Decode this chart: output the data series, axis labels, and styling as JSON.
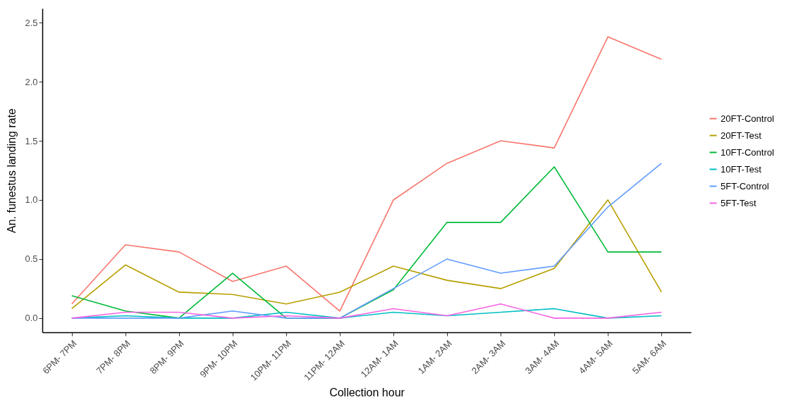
{
  "chart_data": {
    "type": "line",
    "xlabel": "Collection hour",
    "ylabel": "An. funestus landing rate",
    "categories": [
      "6PM- 7PM",
      "7PM- 8PM",
      "8PM- 9PM",
      "9PM- 10PM",
      "10PM- 11PM",
      "11PM- 12AM",
      "12AM- 1AM",
      "1AM- 2AM",
      "2AM- 3AM",
      "3AM- 4AM",
      "4AM- 5AM",
      "5AM- 6AM"
    ],
    "ylim": [
      -0.12,
      2.62
    ],
    "yticks": [
      {
        "value": 0,
        "label": "0.0"
      },
      0.5,
      {
        "value": 1,
        "label": "1.0"
      },
      1.5,
      {
        "value": 2,
        "label": "2.0"
      },
      2.5
    ],
    "grid": false,
    "legend": "right",
    "series": [
      {
        "name": "20FT-Control",
        "color": "#f8766d",
        "values": [
          0.12,
          0.62,
          0.56,
          0.31,
          0.44,
          0.06,
          1.0,
          1.31,
          1.5,
          1.44,
          2.38,
          2.19
        ]
      },
      {
        "name": "20FT-Test",
        "color": "#b79f00",
        "values": [
          0.08,
          0.45,
          0.22,
          0.2,
          0.12,
          0.22,
          0.44,
          0.32,
          0.25,
          0.42,
          1.0,
          0.22
        ]
      },
      {
        "name": "10FT-Control",
        "color": "#00ba38",
        "values": [
          0.19,
          0.06,
          0,
          0.38,
          0,
          0,
          0.24,
          0.81,
          0.81,
          1.28,
          0.56,
          0.56
        ]
      },
      {
        "name": "10FT-Test",
        "color": "#00bfc4",
        "values": [
          0,
          0.02,
          0,
          0,
          0.05,
          0,
          0.05,
          0.02,
          0.05,
          0.08,
          0,
          0.02
        ]
      },
      {
        "name": "5FT-Control",
        "color": "#619cff",
        "values": [
          0,
          0,
          0,
          0.06,
          0,
          0,
          0.25,
          0.5,
          0.38,
          0.44,
          0.94,
          1.31
        ]
      },
      {
        "name": "5FT-Test",
        "color": "#f564e3",
        "values": [
          0,
          0.05,
          0.05,
          0,
          0.02,
          0,
          0.08,
          0.02,
          0.12,
          0,
          0,
          0.05
        ]
      }
    ]
  }
}
